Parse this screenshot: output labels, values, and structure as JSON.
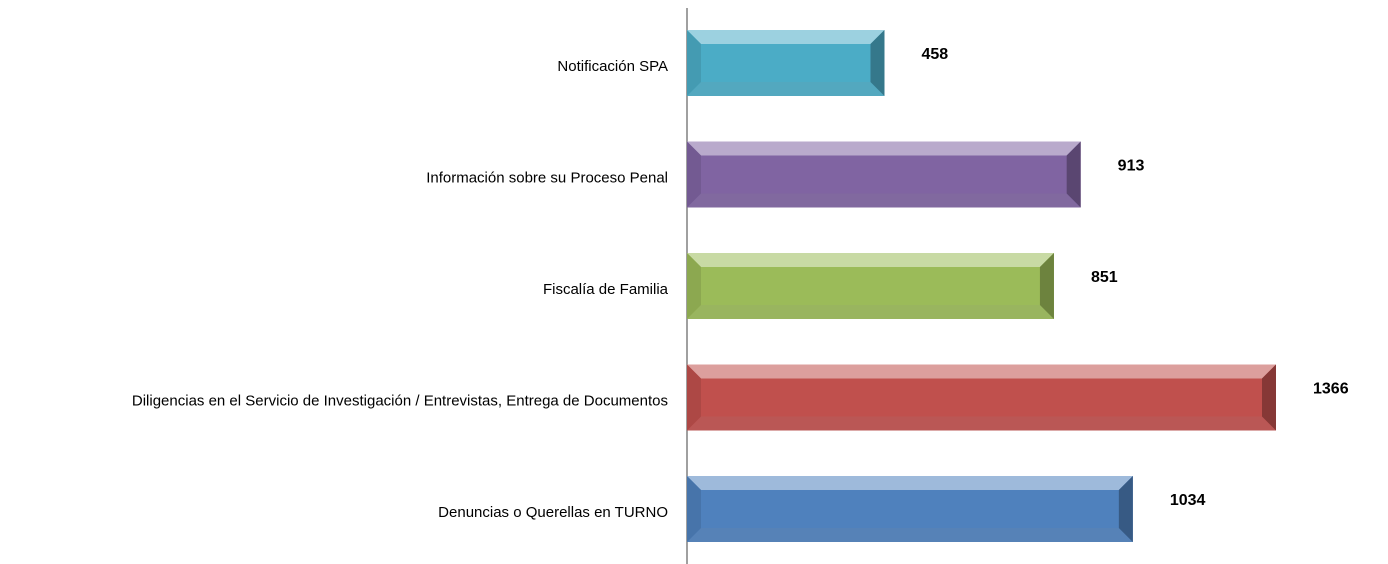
{
  "chart_data": {
    "type": "bar",
    "orientation": "horizontal",
    "categories": [
      "Notificación SPA",
      "Información sobre su Proceso Penal",
      "Fiscalía de Familia",
      "Diligencias en el Servicio de Investigación / Entrevistas, Entrega de Documentos",
      "Denuncias o Querellas en TURNO"
    ],
    "values": [
      458,
      913,
      851,
      1366,
      1034
    ],
    "colors": [
      "#4bacc6",
      "#8064a2",
      "#9bbb59",
      "#c0504d",
      "#4f81bd"
    ]
  }
}
